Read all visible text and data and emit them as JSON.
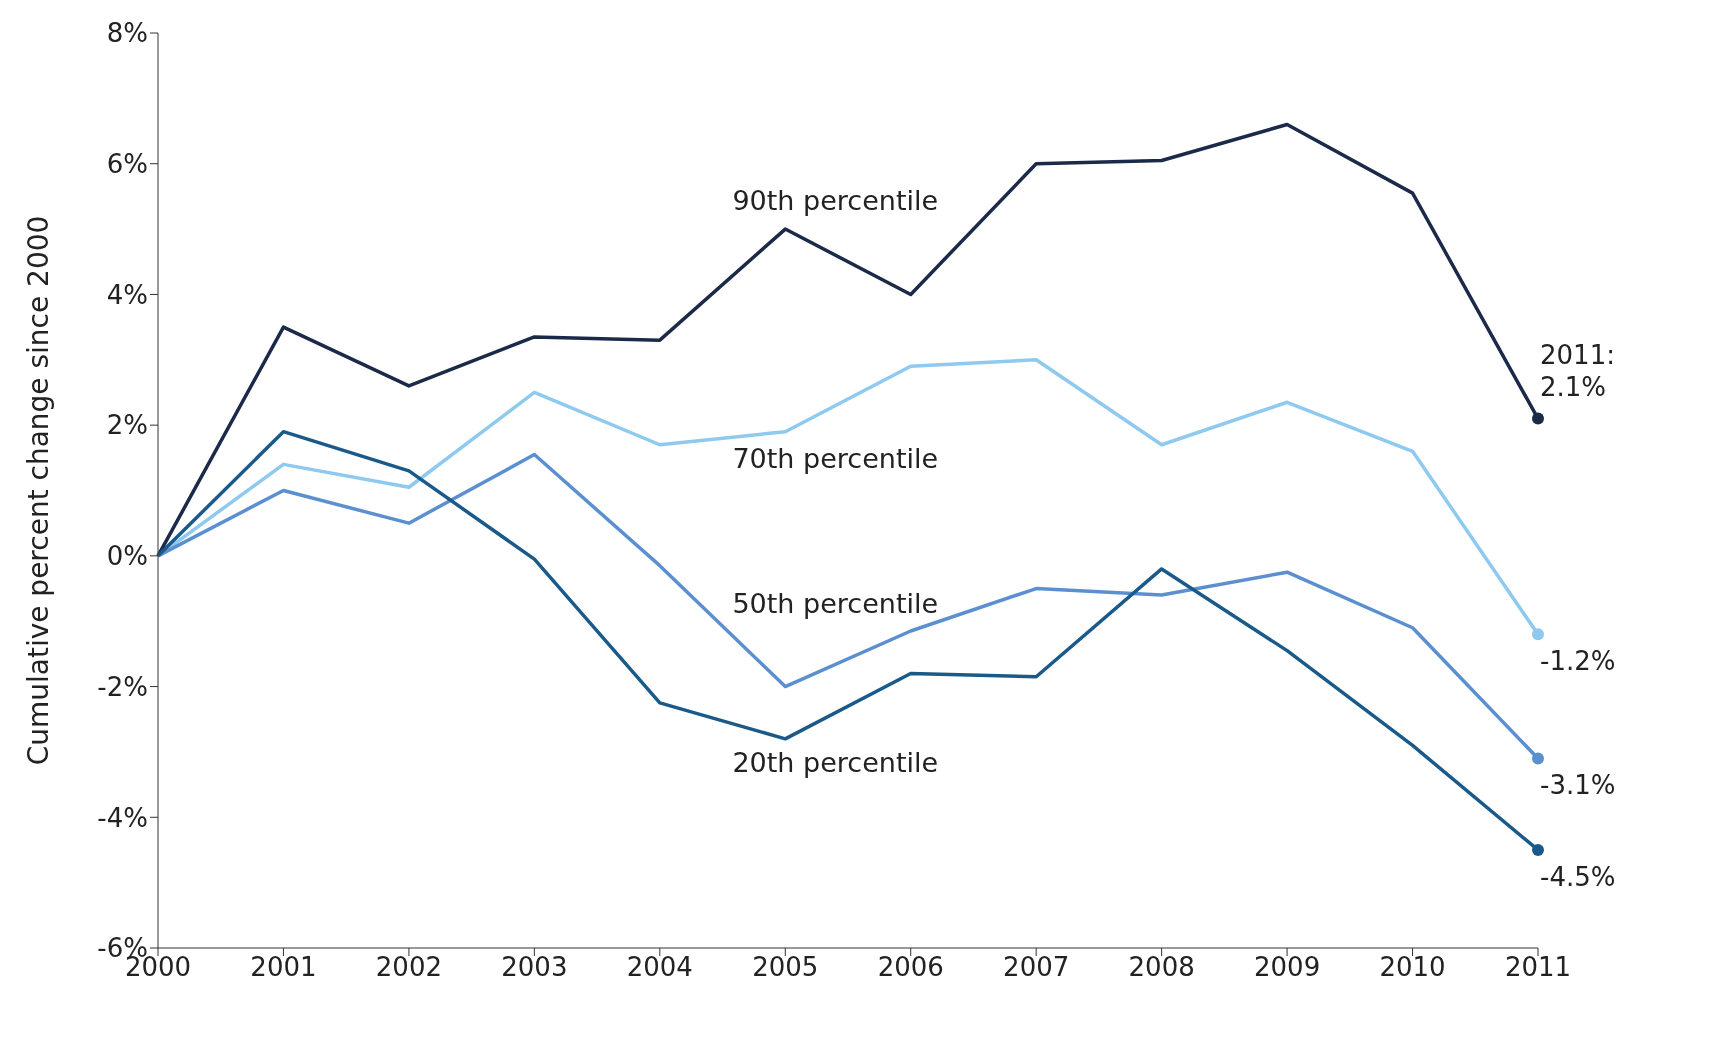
{
  "chart_data": {
    "type": "line",
    "ylabel": "Cumulative percent change since 2000",
    "x": [
      2000,
      2001,
      2002,
      2003,
      2004,
      2005,
      2006,
      2007,
      2008,
      2009,
      2010,
      2011
    ],
    "xlim": [
      2000,
      2011
    ],
    "xticks": [
      2000,
      2001,
      2002,
      2003,
      2004,
      2005,
      2006,
      2007,
      2008,
      2009,
      2010,
      2011
    ],
    "ylim": [
      -6,
      8
    ],
    "yticks": [
      {
        "value": -6,
        "label": "-6%"
      },
      {
        "value": -4,
        "label": "-4%"
      },
      {
        "value": -2,
        "label": "-2%"
      },
      {
        "value": 0,
        "label": "0%"
      },
      {
        "value": 2,
        "label": "2%"
      },
      {
        "value": 4,
        "label": "4%"
      },
      {
        "value": 6,
        "label": "6%"
      },
      {
        "value": 8,
        "label": "8%"
      }
    ],
    "grid": false,
    "legend": false,
    "line_style": "solid",
    "series": [
      {
        "name": "90th percentile",
        "color": "#1b2a48",
        "values": [
          0,
          3.5,
          2.6,
          3.35,
          3.3,
          5.0,
          4.0,
          6.0,
          6.05,
          6.6,
          5.55,
          2.1
        ],
        "value_labels": [
          null,
          null,
          null,
          null,
          null,
          null,
          null,
          null,
          null,
          null,
          null,
          "2011: 2.1%"
        ]
      },
      {
        "name": "70th percentile",
        "color": "#8ec9ef",
        "values": [
          0,
          1.4,
          1.05,
          2.5,
          1.7,
          1.9,
          2.9,
          3.0,
          1.7,
          2.35,
          1.6,
          -1.2
        ],
        "value_labels": [
          null,
          null,
          null,
          null,
          null,
          null,
          null,
          null,
          null,
          null,
          null,
          "-1.2%"
        ]
      },
      {
        "name": "50th percentile",
        "color": "#5b8fd0",
        "values": [
          0,
          1.0,
          0.5,
          1.55,
          -0.15,
          -2.0,
          -1.15,
          -0.5,
          -0.6,
          -0.25,
          -1.1,
          -3.1
        ],
        "value_labels": [
          null,
          null,
          null,
          null,
          null,
          null,
          null,
          null,
          null,
          null,
          null,
          "-3.1%"
        ]
      },
      {
        "name": "20th percentile",
        "color": "#1a5a8a",
        "values": [
          0,
          1.9,
          1.3,
          -0.05,
          -2.25,
          -2.8,
          -1.8,
          -1.85,
          -0.2,
          -1.45,
          -2.9,
          -4.5
        ],
        "value_labels": [
          null,
          null,
          null,
          null,
          null,
          null,
          null,
          null,
          null,
          null,
          null,
          "-4.5%"
        ]
      }
    ]
  }
}
